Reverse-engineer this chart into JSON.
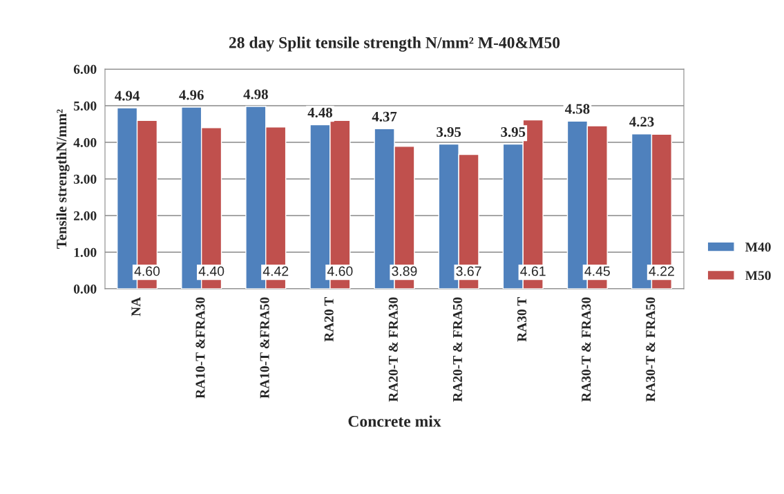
{
  "chart_data": {
    "type": "bar",
    "title": "28 day Split tensile strength N/mm² M-40&M50",
    "xlabel": "Concrete mix",
    "ylabel": "Tensile strengthN/mm²",
    "categories": [
      "NA",
      "RA10-T &FRA30",
      "RA10-T &FRA50",
      "RA20 T",
      "RA20-T & FRA30",
      "RA20-T & FRA50",
      "RA30 T",
      "RA30-T & FRA30",
      "RA30-T & FRA50"
    ],
    "series": [
      {
        "name": "M40",
        "color": "#4f81bd",
        "values": [
          4.94,
          4.96,
          4.98,
          4.48,
          4.37,
          3.95,
          3.95,
          4.58,
          4.23
        ],
        "value_labels": [
          "4.94",
          "4.96",
          "4.98",
          "4.48",
          "4.37",
          "3.95",
          "3.95",
          "4.58",
          "4.23"
        ]
      },
      {
        "name": "M50",
        "color": "#c0504d",
        "values": [
          4.6,
          4.4,
          4.42,
          4.6,
          3.89,
          3.67,
          4.61,
          4.45,
          4.22
        ],
        "value_labels": [
          "4.60",
          "4.40",
          "4.42",
          "4.60",
          "3.89",
          "3.67",
          "4.61",
          "4.45",
          "4.22"
        ]
      }
    ],
    "ylim": [
      0,
      6
    ],
    "yticks": [
      {
        "value": 0,
        "label": "0.00"
      },
      {
        "value": 1,
        "label": "1.00"
      },
      {
        "value": 2,
        "label": "2.00"
      },
      {
        "value": 3,
        "label": "3.00"
      },
      {
        "value": 4,
        "label": "4.00"
      },
      {
        "value": 5,
        "label": "5.00"
      },
      {
        "value": 6,
        "label": "6.00"
      }
    ],
    "grid": "y",
    "legend": "right"
  }
}
